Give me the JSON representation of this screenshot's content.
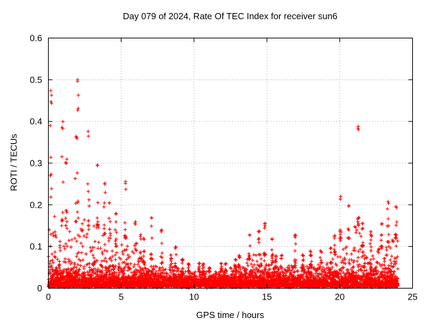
{
  "chart_data": {
    "type": "scatter",
    "title": "Day 079 of 2024, Rate Of TEC Index for receiver sun6",
    "day_of_year": "079",
    "year": "2024",
    "receiver": "sun6",
    "xlabel": "GPS time / hours",
    "ylabel": "ROTI / TECUs",
    "xlim": [
      0,
      25
    ],
    "ylim": [
      0,
      0.6
    ],
    "xticks": {
      "values": [
        0,
        5,
        10,
        15,
        20,
        25
      ],
      "labels": [
        "0",
        "5",
        "10",
        "15",
        "20",
        "25"
      ]
    },
    "yticks": {
      "values": [
        0,
        0.1,
        0.2,
        0.3,
        0.4,
        0.5,
        0.6
      ],
      "labels": [
        "0",
        "0.1",
        "0.2",
        "0.3",
        "0.4",
        "0.5",
        "0.6"
      ]
    },
    "grid": true,
    "legend": "none",
    "marker": "plus",
    "color": "#ff0000",
    "grid_color": "#a0a0a0",
    "axis_color": "#000000",
    "data_x_range": [
      0,
      24
    ],
    "baseline_band": [
      0,
      0.05
    ],
    "bins": {
      "width": 0.5,
      "x_start": 0,
      "comment": "per 0.5h bin: p90 = approx 90th percentile of ROTI, max = approx max ROTI spike read from plot",
      "p90": [
        0.18,
        0.15,
        0.15,
        0.16,
        0.18,
        0.15,
        0.15,
        0.13,
        0.12,
        0.1,
        0.12,
        0.09,
        0.07,
        0.06,
        0.07,
        0.06,
        0.05,
        0.05,
        0.04,
        0.04,
        0.04,
        0.04,
        0.04,
        0.04,
        0.04,
        0.05,
        0.05,
        0.07,
        0.08,
        0.08,
        0.06,
        0.05,
        0.05,
        0.06,
        0.05,
        0.05,
        0.05,
        0.06,
        0.06,
        0.08,
        0.12,
        0.12,
        0.15,
        0.1,
        0.09,
        0.1,
        0.11,
        0.12
      ],
      "max": [
        0.48,
        0.4,
        0.31,
        0.38,
        0.51,
        0.38,
        0.3,
        0.26,
        0.21,
        0.18,
        0.26,
        0.16,
        0.13,
        0.12,
        0.17,
        0.14,
        0.08,
        0.1,
        0.07,
        0.06,
        0.06,
        0.06,
        0.05,
        0.06,
        0.06,
        0.07,
        0.08,
        0.13,
        0.14,
        0.16,
        0.12,
        0.08,
        0.08,
        0.13,
        0.08,
        0.09,
        0.08,
        0.09,
        0.1,
        0.13,
        0.22,
        0.2,
        0.39,
        0.16,
        0.14,
        0.16,
        0.21,
        0.2
      ]
    },
    "notable_spikes": [
      {
        "x": 0.1,
        "y": 0.48
      },
      {
        "x": 2.1,
        "y": 0.51
      },
      {
        "x": 21.0,
        "y": 0.39
      }
    ]
  }
}
